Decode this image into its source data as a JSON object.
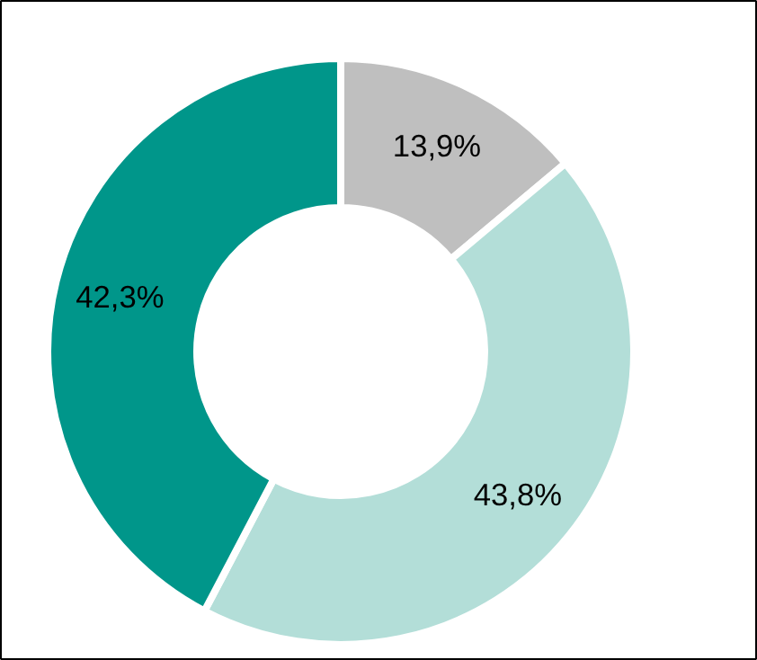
{
  "chart_data": {
    "type": "donut",
    "categories": [
      null,
      null,
      null
    ],
    "values": [
      13.9,
      43.8,
      42.3
    ],
    "colors": [
      "#bfbfbf",
      "#b3ded8",
      "#00968a"
    ],
    "value_labels": [
      "13,9%",
      "43,8%",
      "42,3%"
    ]
  }
}
